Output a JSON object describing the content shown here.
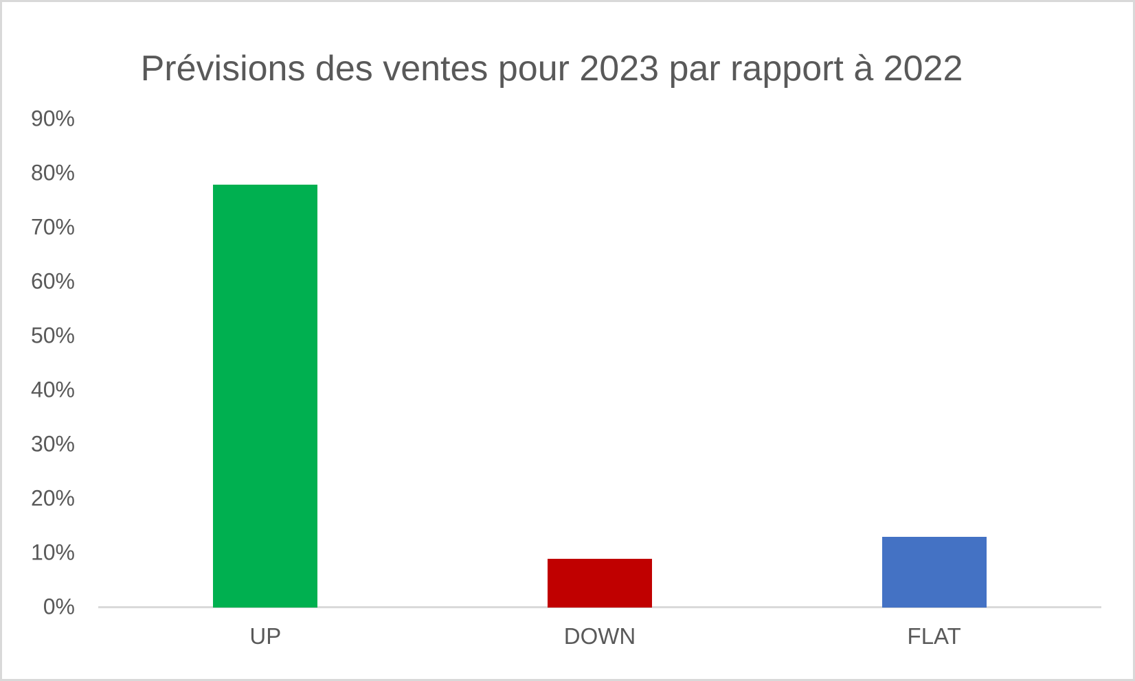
{
  "chart_data": {
    "type": "bar",
    "title": "Prévisions des ventes pour 2023 par rapport à 2022",
    "categories": [
      "UP",
      "DOWN",
      "FLAT"
    ],
    "values": [
      78,
      9,
      13
    ],
    "value_unit": "%",
    "bar_colors": [
      "#00B050",
      "#C00000",
      "#4472C4"
    ],
    "xlabel": "",
    "ylabel": "",
    "ylim": [
      0,
      90
    ],
    "ytick_interval": 10,
    "ytick_labels": [
      "0%",
      "10%",
      "20%",
      "30%",
      "40%",
      "50%",
      "60%",
      "70%",
      "80%",
      "90%"
    ],
    "grid": false,
    "legend_position": "none"
  },
  "colors": {
    "text": "#595959",
    "axis_line": "#D9D9D9",
    "border": "#D9D9D9",
    "background": "#FFFFFF"
  }
}
